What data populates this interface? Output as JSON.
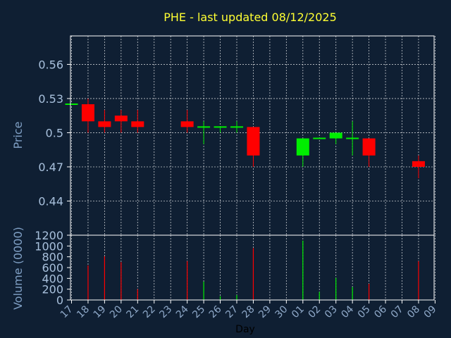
{
  "chart_data": {
    "type": "candlestick",
    "title": "PHE - last updated 08/12/2025",
    "xlabel": "Day",
    "price_panel": {
      "ylabel": "Price",
      "ylim": [
        0.41,
        0.585
      ],
      "ticks": [
        "0.56",
        "0.53",
        "0.5",
        "0.47",
        "0.44"
      ],
      "tick_values": [
        0.56,
        0.53,
        0.5,
        0.47,
        0.44
      ]
    },
    "volume_panel": {
      "ylabel": "Volume (0000)",
      "ylim": [
        0,
        1200
      ],
      "ticks": [
        "1200",
        "1000",
        "800",
        "600",
        "400",
        "200",
        "0"
      ],
      "tick_values": [
        1200,
        1000,
        800,
        600,
        400,
        200,
        0
      ]
    },
    "x_ticks": [
      "17",
      "18",
      "19",
      "20",
      "21",
      "22",
      "23",
      "24",
      "25",
      "26",
      "27",
      "28",
      "29",
      "30",
      "01",
      "02",
      "03",
      "04",
      "05",
      "06",
      "07",
      "08",
      "09"
    ],
    "grid": true,
    "colors": {
      "up": "#00ee00",
      "down": "#ff0000",
      "grid": "#ffffff",
      "frame": "#ffffff",
      "title": "#ffff33"
    },
    "candles": [
      {
        "day": "17",
        "open": 0.525,
        "high": 0.525,
        "low": 0.525,
        "close": 0.525,
        "volume": 0
      },
      {
        "day": "18",
        "open": 0.525,
        "high": 0.53,
        "low": 0.5,
        "close": 0.51,
        "volume": 640
      },
      {
        "day": "19",
        "open": 0.51,
        "high": 0.52,
        "low": 0.5,
        "close": 0.505,
        "volume": 810
      },
      {
        "day": "20",
        "open": 0.515,
        "high": 0.52,
        "low": 0.5,
        "close": 0.51,
        "volume": 700
      },
      {
        "day": "21",
        "open": 0.51,
        "high": 0.52,
        "low": 0.5,
        "close": 0.505,
        "volume": 200
      },
      {
        "day": "24",
        "open": 0.51,
        "high": 0.52,
        "low": 0.5,
        "close": 0.505,
        "volume": 720
      },
      {
        "day": "25",
        "open": 0.505,
        "high": 0.51,
        "low": 0.49,
        "close": 0.505,
        "volume": 340
      },
      {
        "day": "26",
        "open": 0.505,
        "high": 0.505,
        "low": 0.5,
        "close": 0.505,
        "volume": 70
      },
      {
        "day": "27",
        "open": 0.505,
        "high": 0.51,
        "low": 0.5,
        "close": 0.505,
        "volume": 90
      },
      {
        "day": "28",
        "open": 0.505,
        "high": 0.505,
        "low": 0.47,
        "close": 0.48,
        "volume": 960
      },
      {
        "day": "01",
        "open": 0.48,
        "high": 0.495,
        "low": 0.47,
        "close": 0.495,
        "volume": 1100
      },
      {
        "day": "02",
        "open": 0.495,
        "high": 0.495,
        "low": 0.495,
        "close": 0.495,
        "volume": 150
      },
      {
        "day": "03",
        "open": 0.495,
        "high": 0.5,
        "low": 0.49,
        "close": 0.5,
        "volume": 410
      },
      {
        "day": "04",
        "open": 0.495,
        "high": 0.51,
        "low": 0.48,
        "close": 0.495,
        "volume": 240
      },
      {
        "day": "05",
        "open": 0.495,
        "high": 0.495,
        "low": 0.47,
        "close": 0.48,
        "volume": 300
      },
      {
        "day": "08",
        "open": 0.475,
        "high": 0.48,
        "low": 0.46,
        "close": 0.47,
        "volume": 720
      }
    ]
  }
}
